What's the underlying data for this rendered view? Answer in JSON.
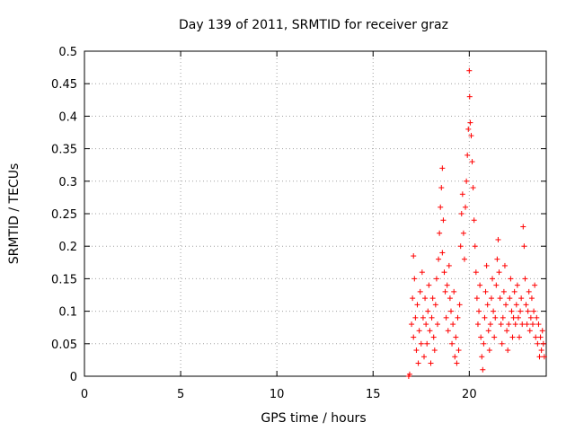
{
  "chart_data": {
    "type": "scatter",
    "title": "Day 139 of 2011, SRMTID for receiver graz",
    "xlabel": "GPS time / hours",
    "ylabel": "SRMTID / TECUs",
    "xlim": [
      0,
      24
    ],
    "ylim": [
      0,
      0.5
    ],
    "xticks": [
      0,
      5,
      10,
      15,
      20
    ],
    "xtick_labels": [
      "0",
      "5",
      "10",
      "15",
      "20"
    ],
    "yticks": [
      0,
      0.05,
      0.1,
      0.15,
      0.2,
      0.25,
      0.3,
      0.35,
      0.4,
      0.45,
      0.5
    ],
    "ytick_labels": [
      "0",
      "0.05",
      "0.1",
      "0.15",
      "0.2",
      "0.25",
      "0.3",
      "0.35",
      "0.4",
      "0.45",
      "0.5"
    ],
    "grid": true,
    "marker": "+",
    "color": "#ff0000",
    "series": [
      {
        "name": "SRMTID",
        "points": [
          [
            16.85,
            0.0
          ],
          [
            16.9,
            0.003
          ],
          [
            17.0,
            0.08
          ],
          [
            17.05,
            0.12
          ],
          [
            17.1,
            0.06
          ],
          [
            17.1,
            0.185
          ],
          [
            17.15,
            0.15
          ],
          [
            17.2,
            0.09
          ],
          [
            17.25,
            0.04
          ],
          [
            17.3,
            0.11
          ],
          [
            17.35,
            0.02
          ],
          [
            17.4,
            0.07
          ],
          [
            17.45,
            0.13
          ],
          [
            17.5,
            0.05
          ],
          [
            17.55,
            0.16
          ],
          [
            17.6,
            0.09
          ],
          [
            17.65,
            0.03
          ],
          [
            17.7,
            0.12
          ],
          [
            17.75,
            0.08
          ],
          [
            17.8,
            0.05
          ],
          [
            17.85,
            0.1
          ],
          [
            17.9,
            0.14
          ],
          [
            17.95,
            0.07
          ],
          [
            18.0,
            0.02
          ],
          [
            18.05,
            0.09
          ],
          [
            18.1,
            0.12
          ],
          [
            18.15,
            0.06
          ],
          [
            18.2,
            0.04
          ],
          [
            18.25,
            0.11
          ],
          [
            18.3,
            0.15
          ],
          [
            18.35,
            0.08
          ],
          [
            18.4,
            0.18
          ],
          [
            18.45,
            0.22
          ],
          [
            18.5,
            0.26
          ],
          [
            18.55,
            0.29
          ],
          [
            18.6,
            0.32
          ],
          [
            18.6,
            0.19
          ],
          [
            18.65,
            0.24
          ],
          [
            18.7,
            0.16
          ],
          [
            18.75,
            0.13
          ],
          [
            18.8,
            0.09
          ],
          [
            18.85,
            0.14
          ],
          [
            18.9,
            0.07
          ],
          [
            18.95,
            0.17
          ],
          [
            19.0,
            0.12
          ],
          [
            19.05,
            0.1
          ],
          [
            19.1,
            0.05
          ],
          [
            19.15,
            0.08
          ],
          [
            19.2,
            0.13
          ],
          [
            19.25,
            0.03
          ],
          [
            19.3,
            0.06
          ],
          [
            19.35,
            0.02
          ],
          [
            19.4,
            0.09
          ],
          [
            19.45,
            0.04
          ],
          [
            19.5,
            0.11
          ],
          [
            19.55,
            0.2
          ],
          [
            19.6,
            0.25
          ],
          [
            19.65,
            0.28
          ],
          [
            19.7,
            0.22
          ],
          [
            19.75,
            0.18
          ],
          [
            19.8,
            0.26
          ],
          [
            19.85,
            0.3
          ],
          [
            19.9,
            0.34
          ],
          [
            19.95,
            0.38
          ],
          [
            20.0,
            0.47
          ],
          [
            20.02,
            0.43
          ],
          [
            20.05,
            0.39
          ],
          [
            20.1,
            0.37
          ],
          [
            20.15,
            0.33
          ],
          [
            20.2,
            0.29
          ],
          [
            20.25,
            0.24
          ],
          [
            20.3,
            0.2
          ],
          [
            20.35,
            0.16
          ],
          [
            20.4,
            0.12
          ],
          [
            20.45,
            0.08
          ],
          [
            20.5,
            0.1
          ],
          [
            20.55,
            0.14
          ],
          [
            20.6,
            0.06
          ],
          [
            20.65,
            0.03
          ],
          [
            20.7,
            0.01
          ],
          [
            20.75,
            0.05
          ],
          [
            20.8,
            0.09
          ],
          [
            20.85,
            0.13
          ],
          [
            20.9,
            0.17
          ],
          [
            20.95,
            0.11
          ],
          [
            21.0,
            0.07
          ],
          [
            21.05,
            0.04
          ],
          [
            21.1,
            0.08
          ],
          [
            21.15,
            0.12
          ],
          [
            21.2,
            0.15
          ],
          [
            21.25,
            0.1
          ],
          [
            21.3,
            0.06
          ],
          [
            21.35,
            0.09
          ],
          [
            21.4,
            0.14
          ],
          [
            21.45,
            0.18
          ],
          [
            21.5,
            0.21
          ],
          [
            21.55,
            0.16
          ],
          [
            21.6,
            0.12
          ],
          [
            21.65,
            0.08
          ],
          [
            21.7,
            0.05
          ],
          [
            21.75,
            0.09
          ],
          [
            21.8,
            0.13
          ],
          [
            21.85,
            0.17
          ],
          [
            21.9,
            0.11
          ],
          [
            21.95,
            0.07
          ],
          [
            22.0,
            0.04
          ],
          [
            22.05,
            0.08
          ],
          [
            22.1,
            0.12
          ],
          [
            22.15,
            0.15
          ],
          [
            22.2,
            0.1
          ],
          [
            22.25,
            0.06
          ],
          [
            22.3,
            0.09
          ],
          [
            22.35,
            0.13
          ],
          [
            22.4,
            0.08
          ],
          [
            22.45,
            0.11
          ],
          [
            22.5,
            0.14
          ],
          [
            22.55,
            0.09
          ],
          [
            22.6,
            0.06
          ],
          [
            22.65,
            0.1
          ],
          [
            22.7,
            0.12
          ],
          [
            22.75,
            0.08
          ],
          [
            22.8,
            0.23
          ],
          [
            22.85,
            0.2
          ],
          [
            22.9,
            0.15
          ],
          [
            22.95,
            0.11
          ],
          [
            23.0,
            0.08
          ],
          [
            23.05,
            0.1
          ],
          [
            23.1,
            0.13
          ],
          [
            23.15,
            0.07
          ],
          [
            23.2,
            0.09
          ],
          [
            23.25,
            0.12
          ],
          [
            23.3,
            0.08
          ],
          [
            23.35,
            0.1
          ],
          [
            23.4,
            0.14
          ],
          [
            23.45,
            0.06
          ],
          [
            23.5,
            0.09
          ],
          [
            23.55,
            0.05
          ],
          [
            23.6,
            0.08
          ],
          [
            23.65,
            0.03
          ],
          [
            23.7,
            0.06
          ],
          [
            23.75,
            0.04
          ],
          [
            23.8,
            0.07
          ],
          [
            23.85,
            0.05
          ],
          [
            23.9,
            0.03
          ]
        ]
      }
    ]
  }
}
